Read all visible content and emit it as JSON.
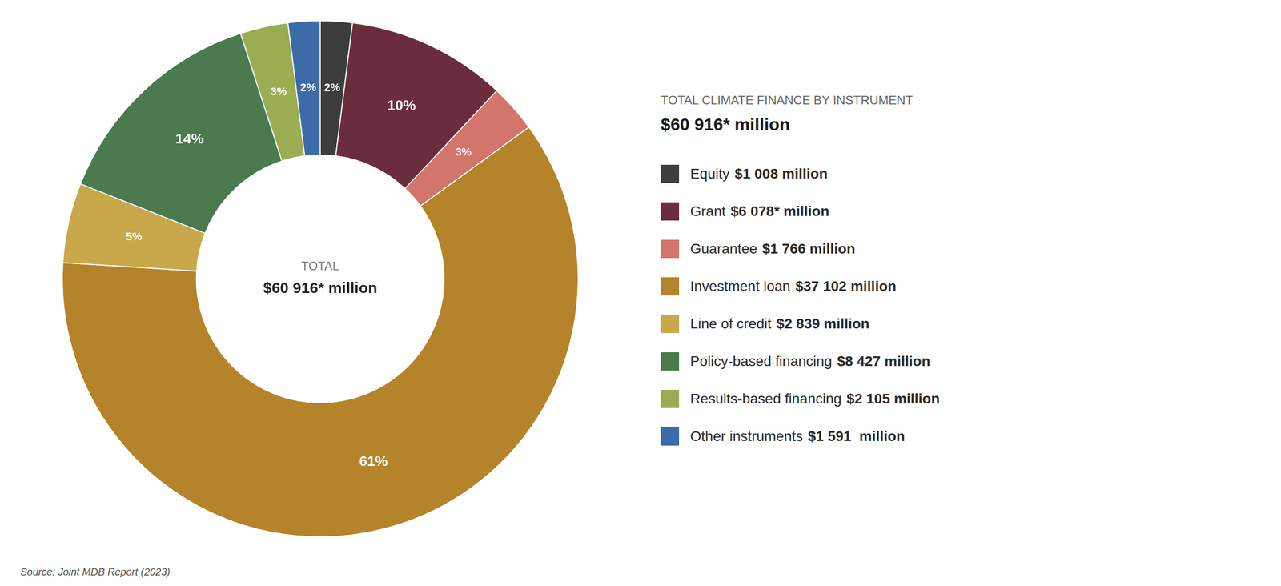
{
  "chart_data": {
    "type": "doughnut",
    "title": "TOTAL CLIMATE FINANCE BY INSTRUMENT",
    "subtitle": "$60 916* million",
    "center_text": [
      "TOTAL",
      "$60 916* million"
    ],
    "source": "Source: Joint MDB Report (2023)",
    "categories": [
      "Equity",
      "Grant",
      "Guarantee",
      "Investment loan",
      "Line of credit",
      "Policy-based financing",
      "Results-based financing",
      "Other instruments"
    ],
    "amount_labels": [
      "$1 008 million",
      "$6 078* million",
      "$1 766 million",
      "$37 102 million",
      "$2 839 million",
      "$8 427 million",
      "$2 105 million",
      "$1 591  million"
    ],
    "values": [
      2,
      10,
      3,
      61,
      5,
      14,
      3,
      2
    ],
    "value_labels": [
      "2%",
      "10%",
      "3%",
      "61%",
      "5%",
      "14%",
      "3%",
      "2%"
    ],
    "colors": [
      "#3d3d3d",
      "#6b2d3e",
      "#d4756b",
      "#b5832a",
      "#c9a84c",
      "#4a7a4e",
      "#9aad52",
      "#3c6baa"
    ],
    "data_labels": true,
    "legend": "right"
  }
}
